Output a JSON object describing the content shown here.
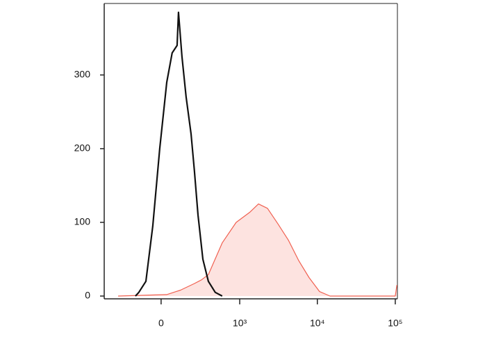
{
  "chart_data": {
    "type": "histogram-overlay",
    "xscale": "arcsinh",
    "xlim": [
      -513,
      106500
    ],
    "xticks": [
      {
        "value": 0,
        "label": "0"
      },
      {
        "value": 1000,
        "label": "10³"
      },
      {
        "value": 10000,
        "label": "10⁴"
      },
      {
        "value": 100000,
        "label": "10⁵"
      }
    ],
    "ylim": [
      0,
      397
    ],
    "yticks": [
      0,
      100,
      200,
      300
    ],
    "series": [
      {
        "color": "#f06050",
        "fill": "#fde3e0",
        "x": [
          -325,
          33,
          120,
          228,
          296,
          375,
          585,
          899,
          1364,
          1750,
          2289,
          3117,
          4240,
          5772,
          7843,
          10690,
          14550,
          100000,
          105000
        ],
        "values": [
          0,
          2,
          8,
          17,
          22,
          29,
          72,
          100,
          114,
          125,
          119,
          98,
          76,
          48,
          25,
          6,
          0,
          0,
          15
        ]
      },
      {
        "color": "#111111",
        "x": [
          -165,
          -140,
          -92,
          -49,
          -8,
          33,
          66,
          97,
          106,
          130,
          160,
          199,
          228,
          261,
          311,
          375,
          470,
          585
        ],
        "values": [
          0,
          5,
          20,
          95,
          200,
          290,
          330,
          340,
          385,
          325,
          270,
          220,
          170,
          110,
          50,
          20,
          5,
          0
        ]
      }
    ]
  }
}
